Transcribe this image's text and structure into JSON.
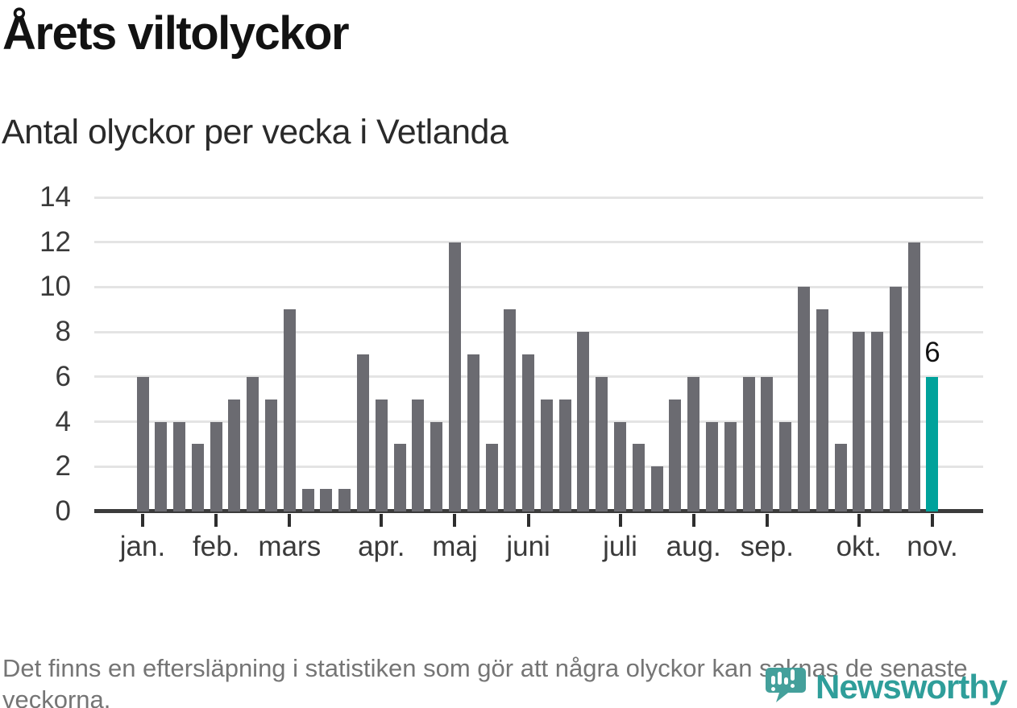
{
  "header": {
    "title": "Årets viltolyckor",
    "subtitle": "Antal olyckor per vecka i Vetlanda"
  },
  "chart_data": {
    "type": "bar",
    "title": "Årets viltolyckor",
    "subtitle": "Antal olyckor per vecka i Vetlanda",
    "xlabel": "",
    "ylabel": "Antal olyckor per vecka",
    "ylim": [
      0,
      14
    ],
    "yticks": [
      0,
      2,
      4,
      6,
      8,
      10,
      12,
      14
    ],
    "grid": "horizontal",
    "legend": "none",
    "categories_unit": "vecka",
    "values": [
      6,
      4,
      4,
      3,
      4,
      5,
      6,
      5,
      9,
      1,
      1,
      1,
      7,
      5,
      3,
      5,
      4,
      12,
      7,
      3,
      9,
      7,
      5,
      5,
      8,
      6,
      4,
      3,
      2,
      5,
      6,
      4,
      4,
      6,
      6,
      4,
      10,
      9,
      3,
      8,
      8,
      10,
      12,
      6
    ],
    "x_months": [
      {
        "label": "jan.",
        "week_index": 0
      },
      {
        "label": "feb.",
        "week_index": 4
      },
      {
        "label": "mars",
        "week_index": 8
      },
      {
        "label": "apr.",
        "week_index": 13
      },
      {
        "label": "maj",
        "week_index": 17
      },
      {
        "label": "juni",
        "week_index": 21
      },
      {
        "label": "juli",
        "week_index": 26
      },
      {
        "label": "aug.",
        "week_index": 30
      },
      {
        "label": "sep.",
        "week_index": 34
      },
      {
        "label": "okt.",
        "week_index": 39
      },
      {
        "label": "nov.",
        "week_index": 43
      }
    ],
    "highlight": {
      "index": 43,
      "value": 6,
      "label": "6"
    },
    "colors": {
      "bar": "#6b6b71",
      "highlight": "#00a29b",
      "gridline": "#e4e4e4",
      "axis": "#3b3b3b"
    }
  },
  "footer": {
    "note": "Det finns en eftersläpning i statistiken som gör att några olyckor kan saknas de senaste veckorna.",
    "brand": "Newsworthy",
    "brand_color": "#2f9e9a",
    "brand_icon_color": "#44a09b"
  }
}
